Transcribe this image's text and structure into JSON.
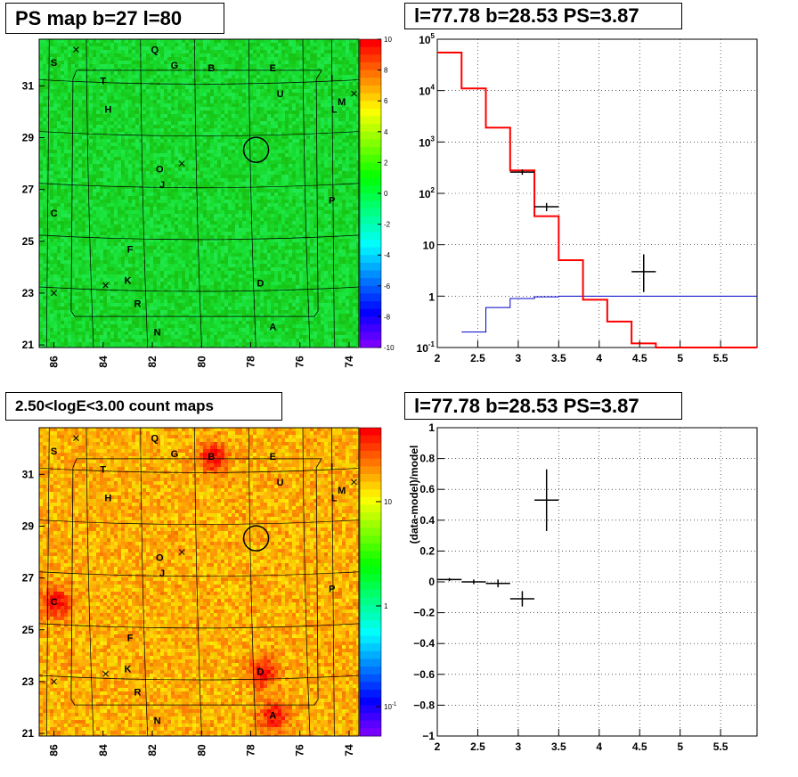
{
  "panels": {
    "ps_map": {
      "title": "PS map b=27 l=80"
    },
    "spectrum": {
      "title": "l=77.78 b=28.53 PS=3.87"
    },
    "count_map": {
      "title": "2.50<logE<3.00 count maps"
    },
    "residual": {
      "title": "l=77.78 b=28.53 PS=3.87"
    }
  },
  "colors": {
    "model": "#ff0000",
    "background": "#0000cc",
    "data": "#000000"
  },
  "chart_data": [
    {
      "type": "heatmap",
      "title": "PS map b=27 l=80",
      "x_ticks": [
        "86",
        "84",
        "82",
        "80",
        "78",
        "76",
        "74"
      ],
      "y_ticks": [
        "31",
        "29",
        "27",
        "25",
        "23",
        "21"
      ],
      "xlim": [
        86.6,
        73.6
      ],
      "ylim": [
        20.9,
        32.8
      ],
      "colorbar": {
        "min": -10,
        "max": 10,
        "ticks": [
          "10",
          "8",
          "6",
          "4",
          "2",
          "0",
          "-2",
          "-4",
          "-6",
          "-8",
          "-10"
        ]
      },
      "sources": [
        {
          "label": "Q",
          "l": 81.9,
          "b": 32.4
        },
        {
          "label": "S",
          "l": 86.0,
          "b": 31.9
        },
        {
          "label": "G",
          "l": 81.1,
          "b": 31.8
        },
        {
          "label": "B",
          "l": 79.6,
          "b": 31.7
        },
        {
          "label": "E",
          "l": 77.1,
          "b": 31.7
        },
        {
          "label": "T",
          "l": 84.0,
          "b": 31.2
        },
        {
          "label": "I",
          "l": 74.7,
          "b": 31.3
        },
        {
          "label": "U",
          "l": 76.8,
          "b": 30.7
        },
        {
          "label": "M",
          "l": 74.3,
          "b": 30.4
        },
        {
          "label": "L",
          "l": 74.6,
          "b": 30.1
        },
        {
          "label": "H",
          "l": 83.8,
          "b": 30.1
        },
        {
          "label": "O",
          "l": 81.7,
          "b": 27.8
        },
        {
          "label": "J",
          "l": 81.6,
          "b": 27.2
        },
        {
          "label": "C",
          "l": 86.0,
          "b": 26.1
        },
        {
          "label": "P",
          "l": 74.7,
          "b": 26.6
        },
        {
          "label": "F",
          "l": 82.9,
          "b": 24.7
        },
        {
          "label": "K",
          "l": 83.0,
          "b": 23.5
        },
        {
          "label": "D",
          "l": 77.6,
          "b": 23.4
        },
        {
          "label": "R",
          "l": 82.6,
          "b": 22.6
        },
        {
          "label": "N",
          "l": 81.8,
          "b": 21.5
        },
        {
          "label": "A",
          "l": 77.1,
          "b": 21.7
        }
      ],
      "markers": [
        {
          "l": 85.1,
          "b": 32.4
        },
        {
          "l": 73.8,
          "b": 30.7
        },
        {
          "l": 80.8,
          "b": 28.0
        },
        {
          "l": 83.9,
          "b": 23.3
        },
        {
          "l": 86.0,
          "b": 23.0
        }
      ],
      "circle": {
        "l": 77.78,
        "b": 28.53
      }
    },
    {
      "type": "line",
      "title": "l=77.78 b=28.53 PS=3.87",
      "x_ticks": [
        "2",
        "2.5",
        "3",
        "3.5",
        "4",
        "4.5",
        "5",
        "5.5"
      ],
      "y_ticks": [
        "10^5",
        "10^4",
        "10^3",
        "10^2",
        "10",
        "1",
        "10^-1"
      ],
      "xlim": [
        2,
        5.95
      ],
      "ylim": [
        0.1,
        100000
      ],
      "ylog": true,
      "series": [
        {
          "bins": [
            2.0,
            2.3,
            2.6,
            2.9,
            3.2,
            3.5,
            3.8,
            4.1,
            4.4,
            4.7,
            5.0,
            5.3,
            5.6,
            5.95
          ],
          "values": [
            55000,
            11000,
            1900,
            280,
            36,
            5,
            0.85,
            0.32,
            0.12,
            0.1,
            0.1,
            0.1,
            0.1
          ]
        },
        {
          "bins": [
            2.3,
            2.6,
            2.9,
            3.2,
            3.5,
            3.8,
            5.95
          ],
          "values": [
            0.2,
            0.6,
            0.9,
            0.97,
            1.0,
            1.0
          ]
        }
      ],
      "data_points": [
        {
          "x": 3.05,
          "y": 260,
          "xerr": 0.15,
          "ylo": 230,
          "yhi": 290
        },
        {
          "x": 3.35,
          "y": 55,
          "xerr": 0.15,
          "ylo": 45,
          "yhi": 65
        },
        {
          "x": 4.55,
          "y": 3,
          "xerr": 0.15,
          "ylo": 1.2,
          "yhi": 6.5
        }
      ]
    },
    {
      "type": "heatmap",
      "title": "2.50<logE<3.00 count maps",
      "x_ticks": [
        "86",
        "84",
        "82",
        "80",
        "78",
        "76",
        "74"
      ],
      "y_ticks": [
        "31",
        "29",
        "27",
        "25",
        "23",
        "21"
      ],
      "xlim": [
        86.6,
        73.6
      ],
      "ylim": [
        20.9,
        32.8
      ],
      "colorbar": {
        "log": true,
        "ticks": [
          "10",
          "1",
          "10^-1"
        ]
      }
    },
    {
      "type": "scatter",
      "title": "l=77.78 b=28.53 PS=3.87",
      "ylabel": "(data-model)/model",
      "x_ticks": [
        "2",
        "2.5",
        "3",
        "3.5",
        "4",
        "4.5",
        "5",
        "5.5"
      ],
      "y_ticks": [
        "1",
        "0.8",
        "0.6",
        "0.4",
        "0.2",
        "0",
        "−0.2",
        "−0.4",
        "−0.6",
        "−0.8",
        "−1"
      ],
      "xlim": [
        2,
        5.95
      ],
      "ylim": [
        -1,
        1
      ],
      "points": [
        {
          "x": 2.15,
          "y": 0.015,
          "xerr": 0.15,
          "yerr": 0.01
        },
        {
          "x": 2.45,
          "y": 0.0,
          "xerr": 0.15,
          "yerr": 0.015
        },
        {
          "x": 2.75,
          "y": -0.01,
          "xerr": 0.15,
          "yerr": 0.025
        },
        {
          "x": 3.05,
          "y": -0.11,
          "xerr": 0.15,
          "yerr": 0.05
        },
        {
          "x": 3.35,
          "y": 0.53,
          "xerr": 0.15,
          "yerr": 0.2
        }
      ]
    }
  ]
}
